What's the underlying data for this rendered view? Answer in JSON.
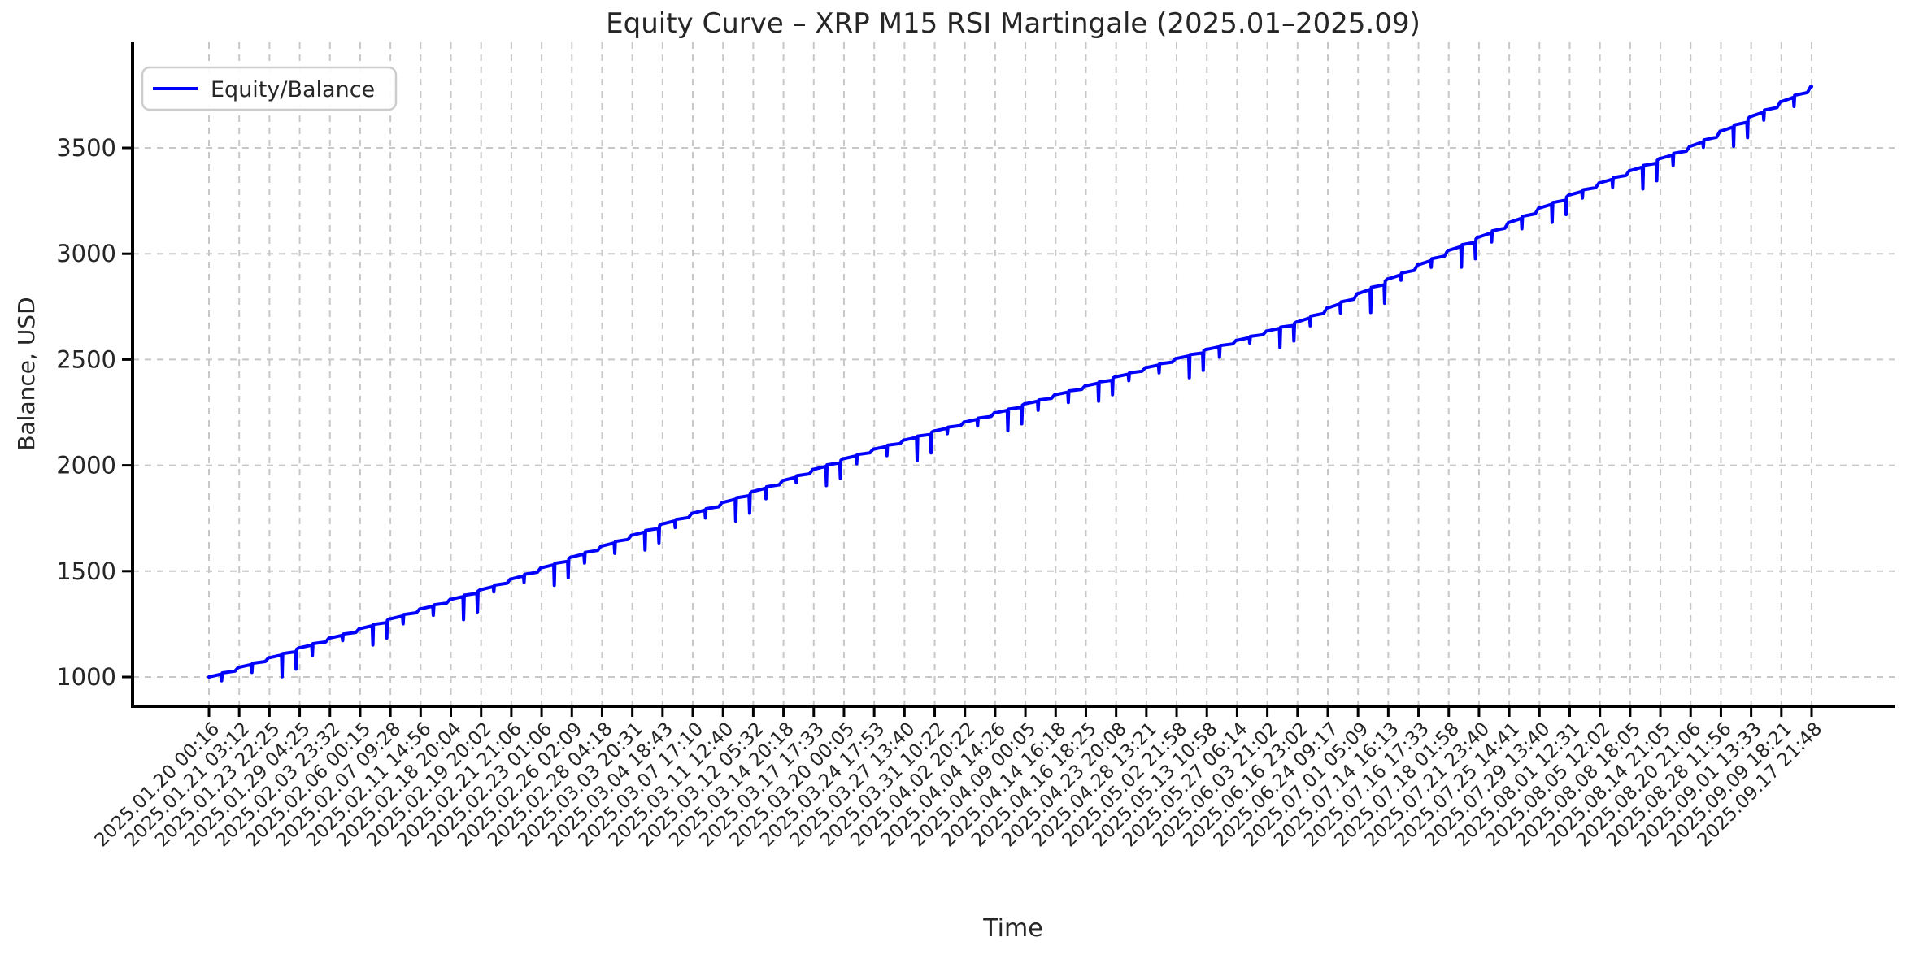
{
  "title": "Equity Curve – XRP M15 RSI Martingale (2025.01–2025.09)",
  "legend": {
    "label": "Equity/Balance",
    "line_color": "#0000ff"
  },
  "chart_data": {
    "type": "line",
    "title": "Equity Curve – XRP M15 RSI Martingale (2025.01–2025.09)",
    "xlabel": "Time",
    "ylabel": "Balance, USD",
    "legend": [
      "Equity/Balance"
    ],
    "legend_position": "upper left",
    "grid": "dashed",
    "line_color": "#0000ff",
    "grid_color": "#c8c8c8",
    "text_color": "#262626",
    "background": "#ffffff",
    "xtick_rotation": 45,
    "yticks": [
      1000,
      1500,
      2000,
      2500,
      3000,
      3500
    ],
    "ylim": [
      860,
      4000
    ],
    "start_balance": 1000,
    "end_balance": 3790,
    "drawdown_spikes": {
      "typical_depth_usd": 25,
      "deep_depth_usd": 85,
      "deep_every_n": 3
    },
    "x_labels": [
      "2025.01.20 00:16",
      "2025.01.21 03:12",
      "2025.01.23 22:25",
      "2025.01.29 04:25",
      "2025.02.03 23:32",
      "2025.02.06 00:15",
      "2025.02.07 09:28",
      "2025.02.11 14:56",
      "2025.02.18 20:04",
      "2025.02.19 20:02",
      "2025.02.21 21:06",
      "2025.02.23 01:06",
      "2025.02.26 02:09",
      "2025.02.28 04:18",
      "2025.03.03 20:31",
      "2025.03.04 18:43",
      "2025.03.07 17:10",
      "2025.03.11 12:40",
      "2025.03.12 05:32",
      "2025.03.14 20:18",
      "2025.03.17 17:33",
      "2025.03.20 00:05",
      "2025.03.24 17:53",
      "2025.03.27 13:40",
      "2025.03.31 10:22",
      "2025.04.02 20:22",
      "2025.04.04 14:26",
      "2025.04.09 00:05",
      "2025.04.14 16:18",
      "2025.04.16 18:25",
      "2025.04.23 20:08",
      "2025.04.28 13:21",
      "2025.05.02 21:58",
      "2025.05.13 10:58",
      "2025.05.27 06:14",
      "2025.06.03 21:02",
      "2025.06.16 23:02",
      "2025.06.24 09:17",
      "2025.07.01 05:09",
      "2025.07.14 16:13",
      "2025.07.16 17:33",
      "2025.07.18 01:58",
      "2025.07.21 23:40",
      "2025.07.25 14:41",
      "2025.07.29 13:40",
      "2025.08.01 12:31",
      "2025.08.05 12:02",
      "2025.08.08 18:05",
      "2025.08.14 21:05",
      "2025.08.20 21:06",
      "2025.08.28 11:56",
      "2025.09.01 13:33",
      "2025.09.09 18:21",
      "2025.09.17 21:48"
    ],
    "series": [
      {
        "name": "Equity/Balance",
        "color": "#0000ff",
        "values": [
          1000,
          1046,
          1091,
          1138,
          1184,
          1229,
          1275,
          1322,
          1367,
          1413,
          1463,
          1516,
          1567,
          1619,
          1670,
          1723,
          1774,
          1825,
          1877,
          1929,
          1981,
          2032,
          2077,
          2120,
          2163,
          2205,
          2248,
          2291,
          2334,
          2376,
          2419,
          2462,
          2505,
          2548,
          2591,
          2635,
          2678,
          2744,
          2812,
          2881,
          2948,
          3016,
          3079,
          3148,
          3216,
          3278,
          3335,
          3393,
          3450,
          3508,
          3579,
          3649,
          3719,
          3790
        ]
      }
    ]
  }
}
